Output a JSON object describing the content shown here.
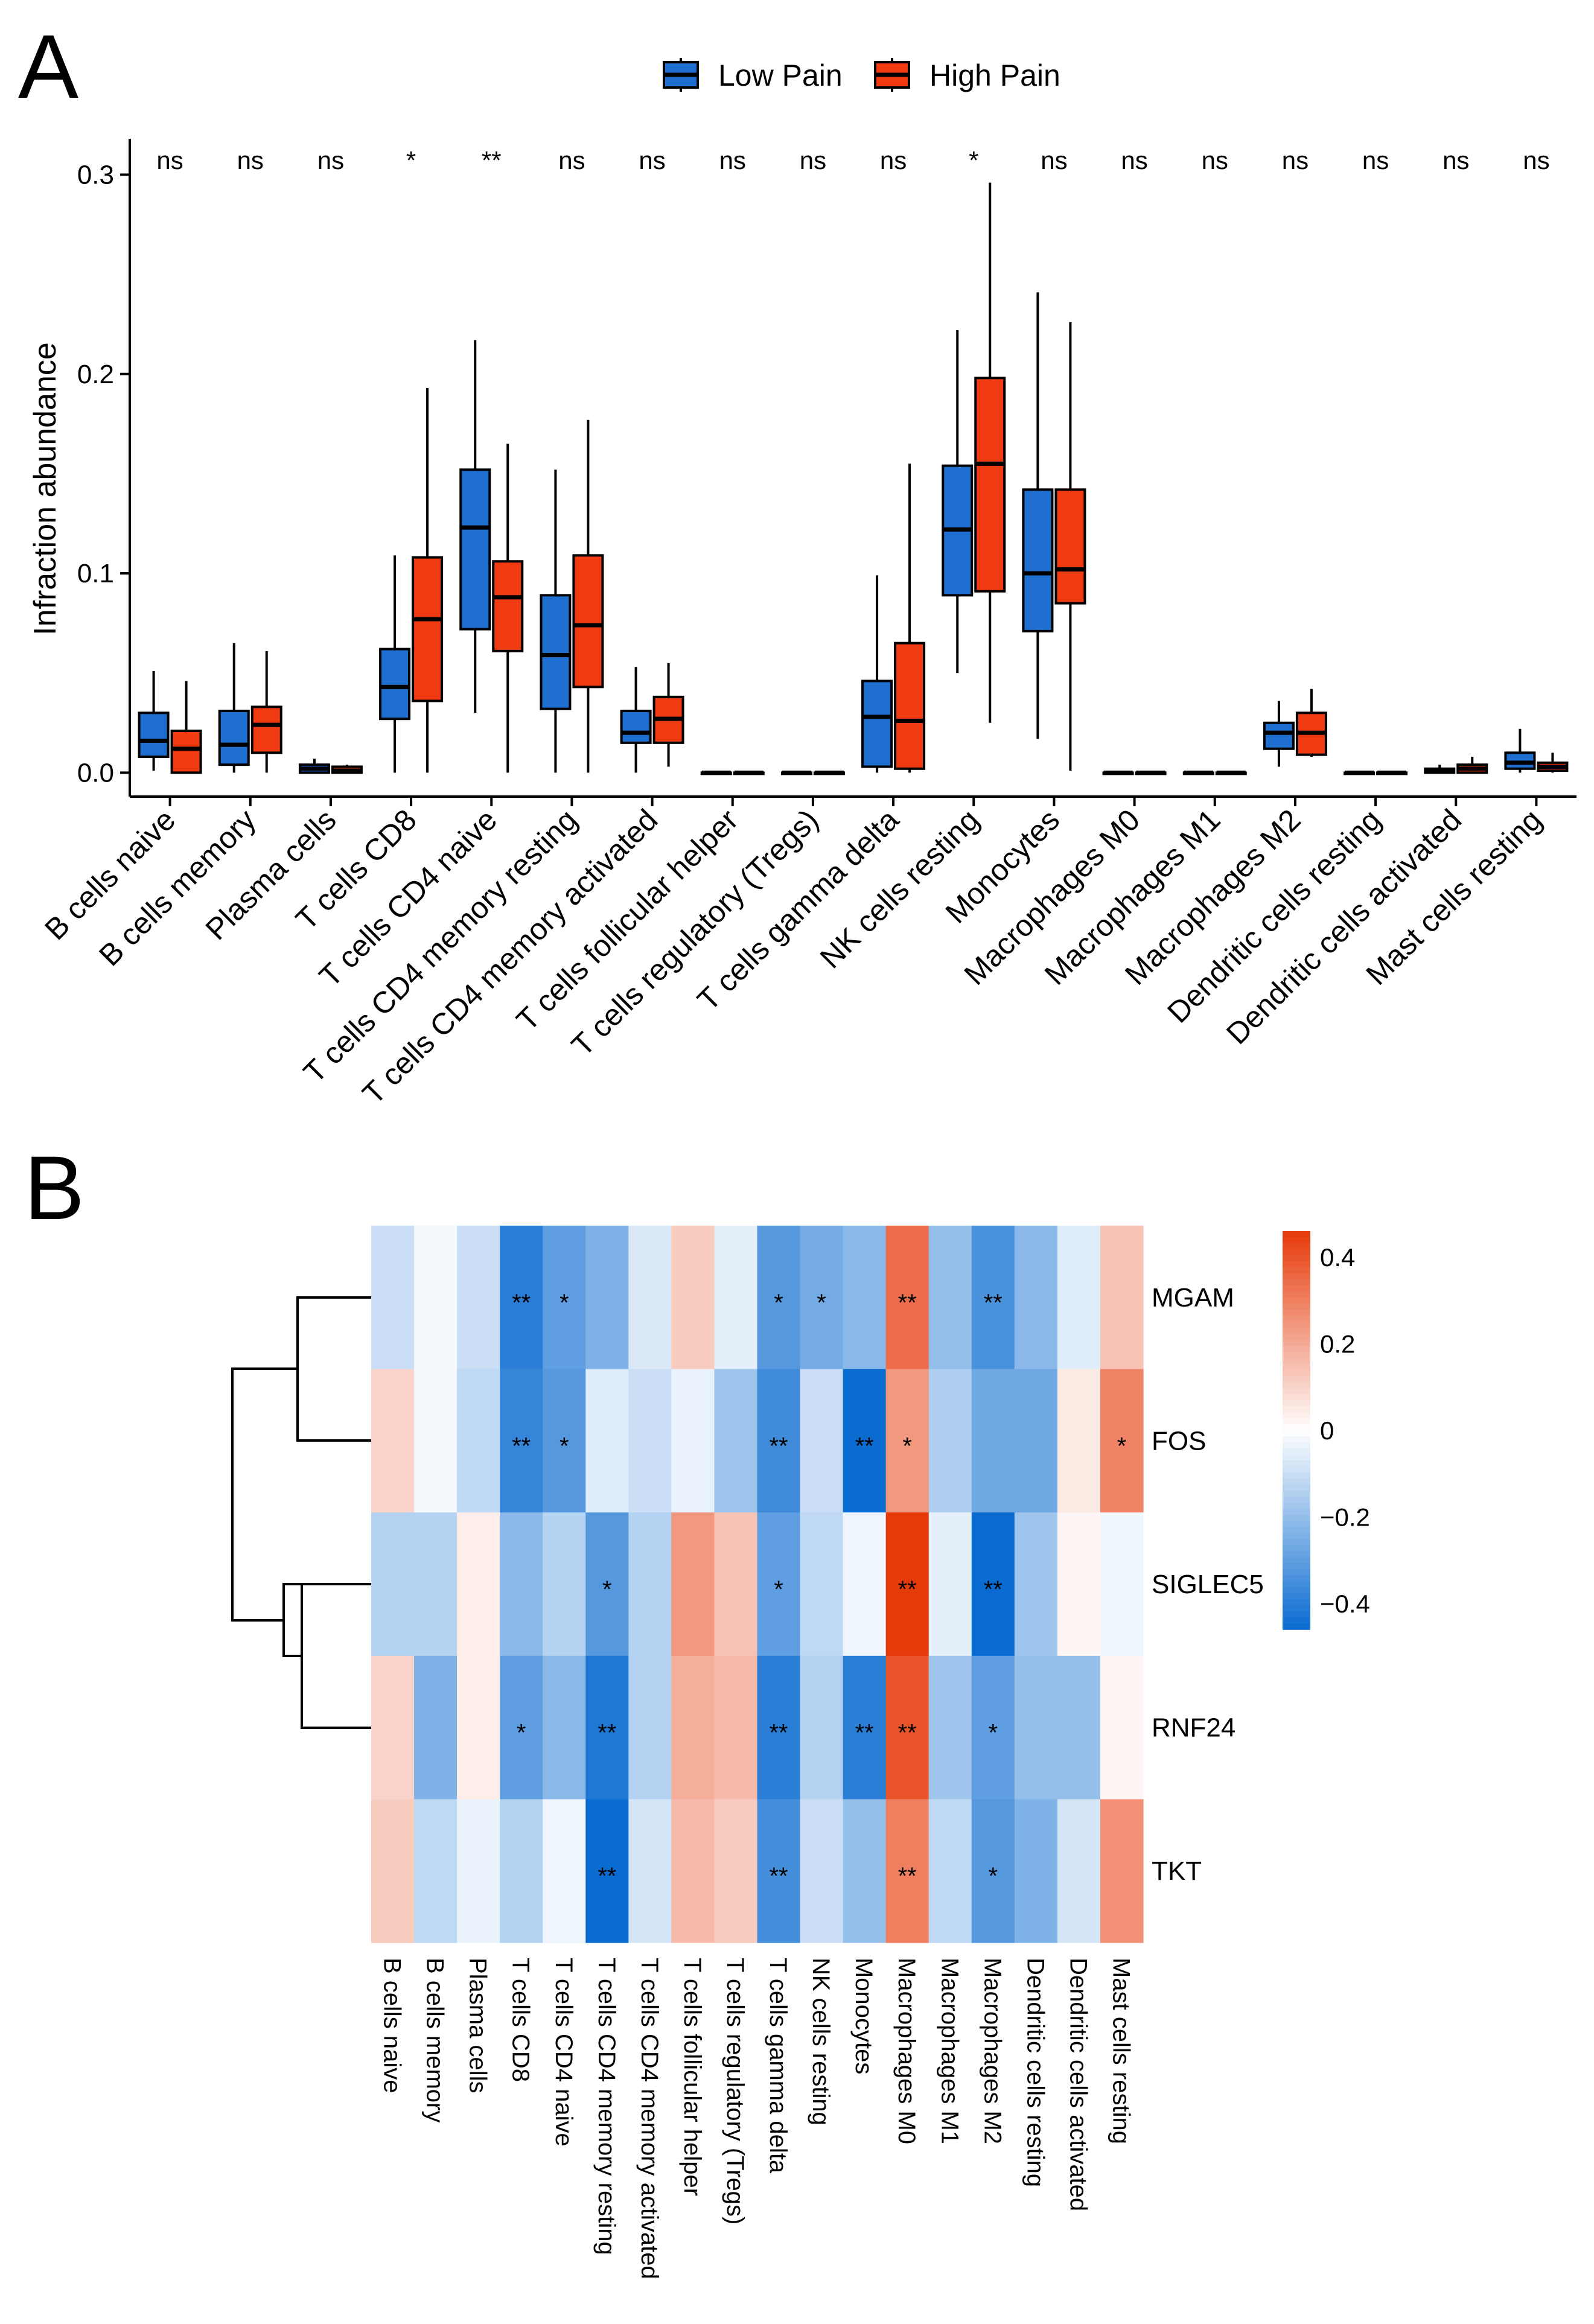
{
  "panels": {
    "a": "A",
    "b": "B"
  },
  "chart_data": [
    {
      "type": "boxplot",
      "panel": "A",
      "ylabel": "Infraction abundance",
      "xlabel": "",
      "ylim": [
        -0.012,
        0.318
      ],
      "yticks": [
        0.0,
        0.1,
        0.2,
        0.3
      ],
      "ytick_labels": [
        "0.0",
        "0.1",
        "0.2",
        "0.3"
      ],
      "legend": {
        "position": "top",
        "entries": [
          "Low Pain",
          "High Pain"
        ]
      },
      "colors": {
        "Low Pain": "#1f6fd1",
        "High Pain": "#f03b12"
      },
      "categories": [
        "B cells naive",
        "B cells memory",
        "Plasma cells",
        "T cells CD8",
        "T cells CD4 naive",
        "T cells CD4 memory resting",
        "T cells CD4 memory activated",
        "T cells follicular helper",
        "T cells regulatory (Tregs)",
        "T cells gamma delta",
        "NK cells resting",
        "Monocytes",
        "Macrophages M0",
        "Macrophages M1",
        "Macrophages M2",
        "Dendritic cells resting",
        "Dendritic cells activated",
        "Mast cells resting"
      ],
      "significance": [
        "ns",
        "ns",
        "ns",
        "*",
        "**",
        "ns",
        "ns",
        "ns",
        "ns",
        "ns",
        "*",
        "ns",
        "ns",
        "ns",
        "ns",
        "ns",
        "ns",
        "ns"
      ],
      "series": [
        {
          "name": "Low Pain",
          "boxes": [
            {
              "min": 0.001,
              "q1": 0.008,
              "median": 0.016,
              "q3": 0.03,
              "max": 0.051
            },
            {
              "min": 0.0,
              "q1": 0.004,
              "median": 0.014,
              "q3": 0.031,
              "max": 0.065
            },
            {
              "min": 0.0,
              "q1": 0.0,
              "median": 0.002,
              "q3": 0.004,
              "max": 0.007
            },
            {
              "min": 0.0,
              "q1": 0.027,
              "median": 0.043,
              "q3": 0.062,
              "max": 0.109
            },
            {
              "min": 0.03,
              "q1": 0.072,
              "median": 0.123,
              "q3": 0.152,
              "max": 0.217
            },
            {
              "min": 0.0,
              "q1": 0.032,
              "median": 0.059,
              "q3": 0.089,
              "max": 0.152
            },
            {
              "min": 0.0,
              "q1": 0.015,
              "median": 0.02,
              "q3": 0.031,
              "max": 0.053
            },
            {
              "min": 0.0,
              "q1": 0.0,
              "median": 0.0,
              "q3": 0.0,
              "max": 0.0
            },
            {
              "min": 0.0,
              "q1": 0.0,
              "median": 0.0,
              "q3": 0.0,
              "max": 0.0
            },
            {
              "min": 0.0,
              "q1": 0.003,
              "median": 0.028,
              "q3": 0.046,
              "max": 0.099
            },
            {
              "min": 0.05,
              "q1": 0.089,
              "median": 0.122,
              "q3": 0.154,
              "max": 0.222
            },
            {
              "min": 0.017,
              "q1": 0.071,
              "median": 0.1,
              "q3": 0.142,
              "max": 0.241
            },
            {
              "min": 0.0,
              "q1": 0.0,
              "median": 0.0,
              "q3": 0.0,
              "max": 0.0
            },
            {
              "min": 0.0,
              "q1": 0.0,
              "median": 0.0,
              "q3": 0.0,
              "max": 0.0
            },
            {
              "min": 0.003,
              "q1": 0.012,
              "median": 0.02,
              "q3": 0.025,
              "max": 0.036
            },
            {
              "min": 0.0,
              "q1": 0.0,
              "median": 0.0,
              "q3": 0.0,
              "max": 0.0
            },
            {
              "min": 0.0,
              "q1": 0.0,
              "median": 0.001,
              "q3": 0.002,
              "max": 0.004
            },
            {
              "min": 0.0,
              "q1": 0.002,
              "median": 0.005,
              "q3": 0.01,
              "max": 0.022
            }
          ]
        },
        {
          "name": "High Pain",
          "boxes": [
            {
              "min": 0.0,
              "q1": 0.0,
              "median": 0.012,
              "q3": 0.021,
              "max": 0.046
            },
            {
              "min": 0.0,
              "q1": 0.01,
              "median": 0.024,
              "q3": 0.033,
              "max": 0.061
            },
            {
              "min": 0.0,
              "q1": 0.0,
              "median": 0.001,
              "q3": 0.003,
              "max": 0.004
            },
            {
              "min": 0.0,
              "q1": 0.036,
              "median": 0.077,
              "q3": 0.108,
              "max": 0.193
            },
            {
              "min": 0.0,
              "q1": 0.061,
              "median": 0.088,
              "q3": 0.106,
              "max": 0.165
            },
            {
              "min": 0.0,
              "q1": 0.043,
              "median": 0.074,
              "q3": 0.109,
              "max": 0.177
            },
            {
              "min": 0.003,
              "q1": 0.015,
              "median": 0.027,
              "q3": 0.038,
              "max": 0.055
            },
            {
              "min": 0.0,
              "q1": 0.0,
              "median": 0.0,
              "q3": 0.0,
              "max": 0.0
            },
            {
              "min": 0.0,
              "q1": 0.0,
              "median": 0.0,
              "q3": 0.0,
              "max": 0.0
            },
            {
              "min": 0.0,
              "q1": 0.002,
              "median": 0.026,
              "q3": 0.065,
              "max": 0.155
            },
            {
              "min": 0.025,
              "q1": 0.091,
              "median": 0.155,
              "q3": 0.198,
              "max": 0.296
            },
            {
              "min": 0.001,
              "q1": 0.085,
              "median": 0.102,
              "q3": 0.142,
              "max": 0.226
            },
            {
              "min": 0.0,
              "q1": 0.0,
              "median": 0.0,
              "q3": 0.0,
              "max": 0.0
            },
            {
              "min": 0.0,
              "q1": 0.0,
              "median": 0.0,
              "q3": 0.0,
              "max": 0.0
            },
            {
              "min": 0.008,
              "q1": 0.009,
              "median": 0.02,
              "q3": 0.03,
              "max": 0.042
            },
            {
              "min": 0.0,
              "q1": 0.0,
              "median": 0.0,
              "q3": 0.0,
              "max": 0.0
            },
            {
              "min": 0.0,
              "q1": 0.0,
              "median": 0.002,
              "q3": 0.004,
              "max": 0.008
            },
            {
              "min": 0.0,
              "q1": 0.001,
              "median": 0.003,
              "q3": 0.005,
              "max": 0.01
            }
          ]
        }
      ]
    },
    {
      "type": "heatmap",
      "panel": "B",
      "rows": [
        "MGAM",
        "FOS",
        "SIGLEC5",
        "RNF24",
        "TKT"
      ],
      "columns": [
        "B cells naive",
        "B cells memory",
        "Plasma cells",
        "T cells CD8",
        "T cells CD4 naive",
        "T cells CD4 memory resting",
        "T cells CD4 memory activated",
        "T cells follicular helper",
        "T cells regulatory (Tregs)",
        "T cells gamma delta",
        "NK cells resting",
        "Monocytes",
        "Macrophages M0",
        "Macrophages M1",
        "Macrophages M2",
        "Dendritic cells resting",
        "Dendritic cells activated",
        "Mast cells resting"
      ],
      "values": [
        [
          -0.1,
          -0.02,
          -0.1,
          -0.4,
          -0.3,
          -0.24,
          -0.07,
          0.12,
          -0.05,
          -0.32,
          -0.26,
          -0.22,
          0.34,
          -0.2,
          -0.34,
          -0.22,
          -0.06,
          0.14
        ],
        [
          0.1,
          -0.02,
          -0.12,
          -0.38,
          -0.32,
          -0.06,
          -0.1,
          -0.04,
          -0.18,
          -0.36,
          -0.1,
          -0.46,
          0.24,
          -0.15,
          -0.27,
          -0.27,
          0.05,
          0.29
        ],
        [
          -0.14,
          -0.14,
          0.04,
          -0.22,
          -0.14,
          -0.32,
          -0.14,
          0.24,
          0.14,
          -0.3,
          -0.12,
          -0.03,
          0.46,
          -0.05,
          -0.46,
          -0.18,
          0.02,
          -0.03
        ],
        [
          0.1,
          -0.24,
          0.04,
          -0.3,
          -0.22,
          -0.42,
          -0.14,
          0.19,
          0.16,
          -0.4,
          -0.14,
          -0.4,
          0.4,
          -0.18,
          -0.3,
          -0.2,
          -0.2,
          0.02
        ],
        [
          0.12,
          -0.12,
          -0.04,
          -0.14,
          -0.03,
          -0.5,
          -0.08,
          0.16,
          0.12,
          -0.35,
          -0.1,
          -0.2,
          0.3,
          -0.12,
          -0.32,
          -0.24,
          -0.08,
          0.26
        ]
      ],
      "stars": [
        [
          "",
          "",
          "",
          "**",
          "*",
          "",
          "",
          "",
          "",
          "*",
          "*",
          "",
          "**",
          "",
          "**",
          "",
          "",
          ""
        ],
        [
          "",
          "",
          "",
          "**",
          "*",
          "",
          "",
          "",
          "",
          "**",
          "",
          "**",
          "*",
          "",
          "",
          "",
          "",
          "*"
        ],
        [
          "",
          "",
          "",
          "",
          "",
          "*",
          "",
          "",
          "",
          "*",
          "",
          "",
          "**",
          "",
          "**",
          "",
          "",
          ""
        ],
        [
          "",
          "",
          "",
          "*",
          "",
          "**",
          "",
          "",
          "",
          "**",
          "",
          "**",
          "**",
          "",
          "*",
          "",
          "",
          ""
        ],
        [
          "",
          "",
          "",
          "",
          "",
          "**",
          "",
          "",
          "",
          "**",
          "",
          "",
          "**",
          "",
          "*",
          "",
          "",
          ""
        ]
      ],
      "dendrogram": "rows clustered: ((MGAM, FOS), (SIGLEC5, (RNF24, TKT)))",
      "colorbar": {
        "range": [
          -0.46,
          0.46
        ],
        "ticks": [
          0.4,
          0.2,
          0,
          -0.2,
          -0.4
        ],
        "tick_labels": [
          "0.4",
          "0.2",
          "0",
          "−0.2",
          "−0.4"
        ],
        "low_color": "#0a6bd0",
        "mid_color": "#ffffff",
        "high_color": "#e63a0a"
      }
    }
  ]
}
